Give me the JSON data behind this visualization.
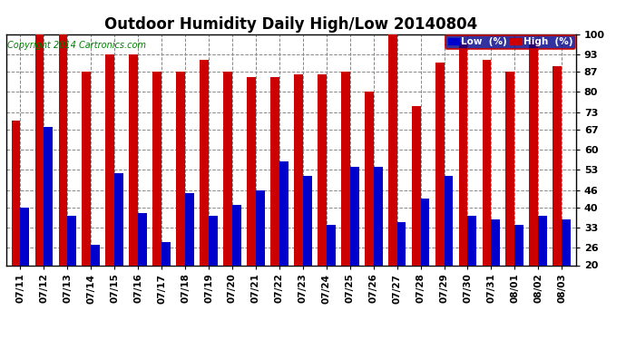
{
  "title": "Outdoor Humidity Daily High/Low 20140804",
  "copyright": "Copyright 2014 Cartronics.com",
  "categories": [
    "07/11",
    "07/12",
    "07/13",
    "07/14",
    "07/15",
    "07/16",
    "07/17",
    "07/18",
    "07/19",
    "07/20",
    "07/21",
    "07/22",
    "07/23",
    "07/24",
    "07/25",
    "07/26",
    "07/27",
    "07/28",
    "07/29",
    "07/30",
    "07/31",
    "08/01",
    "08/02",
    "08/03"
  ],
  "high": [
    70,
    100,
    100,
    87,
    93,
    93,
    87,
    87,
    91,
    87,
    85,
    85,
    86,
    86,
    87,
    80,
    100,
    75,
    90,
    97,
    91,
    87,
    98,
    89
  ],
  "low": [
    40,
    68,
    37,
    27,
    52,
    38,
    28,
    45,
    37,
    41,
    46,
    56,
    51,
    34,
    54,
    54,
    35,
    43,
    51,
    37,
    36,
    34,
    37,
    36
  ],
  "high_color": "#cc0000",
  "low_color": "#0000cc",
  "bg_color": "#ffffff",
  "grid_color": "#888888",
  "yticks": [
    20,
    26,
    33,
    40,
    46,
    53,
    60,
    67,
    73,
    80,
    87,
    93,
    100
  ],
  "ymin": 20,
  "ymax": 100,
  "legend_low_label": "Low  (%)",
  "legend_high_label": "High  (%)",
  "title_fontsize": 12,
  "copyright_fontsize": 7,
  "bar_width": 0.38
}
